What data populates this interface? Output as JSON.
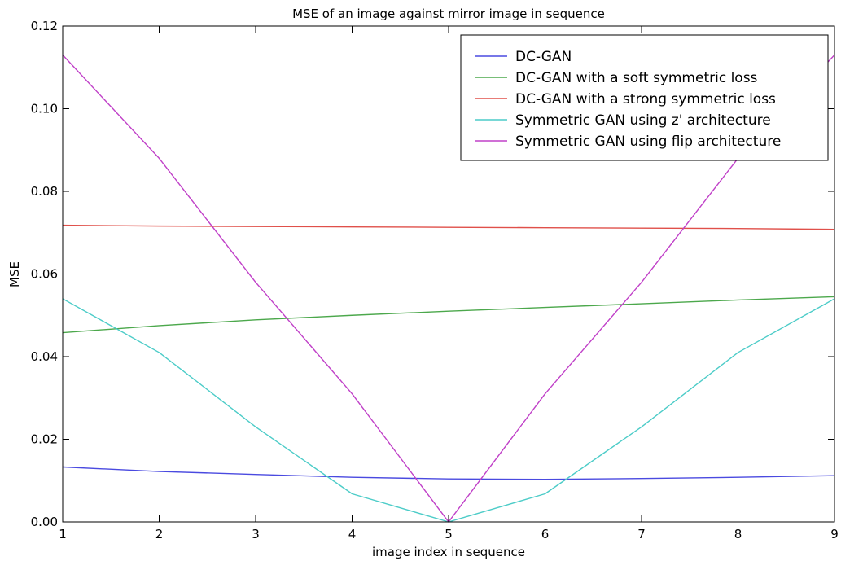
{
  "chart_data": {
    "type": "line",
    "title": "MSE of an image against mirror image in sequence",
    "xlabel": "image index in sequence",
    "ylabel": "MSE",
    "xlim": [
      1,
      9
    ],
    "ylim": [
      0,
      0.12
    ],
    "xticks": [
      1,
      2,
      3,
      4,
      5,
      6,
      7,
      8,
      9
    ],
    "xtick_labels": [
      "1",
      "2",
      "3",
      "4",
      "5",
      "6",
      "7",
      "8",
      "9"
    ],
    "yticks": [
      0,
      0.02,
      0.04,
      0.06,
      0.08,
      0.1,
      0.12
    ],
    "ytick_labels": [
      "0.00",
      "0.02",
      "0.04",
      "0.06",
      "0.08",
      "0.10",
      "0.12"
    ],
    "grid": false,
    "legend_position": "top-right",
    "x": [
      1,
      2,
      3,
      4,
      5,
      6,
      7,
      8,
      9
    ],
    "series": [
      {
        "name": "DC-GAN",
        "color": "#4a4ae0",
        "values": [
          0.0133,
          0.0122,
          0.0115,
          0.0108,
          0.0104,
          0.0103,
          0.0105,
          0.0108,
          0.0112
        ]
      },
      {
        "name": "DC-GAN with a soft symmetric loss",
        "color": "#4ca84c",
        "values": [
          0.0458,
          0.0475,
          0.0489,
          0.05,
          0.051,
          0.0519,
          0.0528,
          0.0537,
          0.0545
        ]
      },
      {
        "name": "DC-GAN with a strong symmetric loss",
        "color": "#e0504a",
        "values": [
          0.0718,
          0.0716,
          0.0715,
          0.0714,
          0.0713,
          0.0712,
          0.0711,
          0.071,
          0.0708
        ]
      },
      {
        "name": "Symmetric GAN using z' architecture",
        "color": "#4cccc8",
        "values": [
          0.054,
          0.041,
          0.023,
          0.0068,
          0.0,
          0.0068,
          0.023,
          0.041,
          0.054
        ]
      },
      {
        "name": "Symmetric GAN using flip architecture",
        "color": "#c040c8",
        "values": [
          0.113,
          0.088,
          0.058,
          0.031,
          0.0,
          0.031,
          0.058,
          0.088,
          0.113
        ]
      }
    ]
  }
}
